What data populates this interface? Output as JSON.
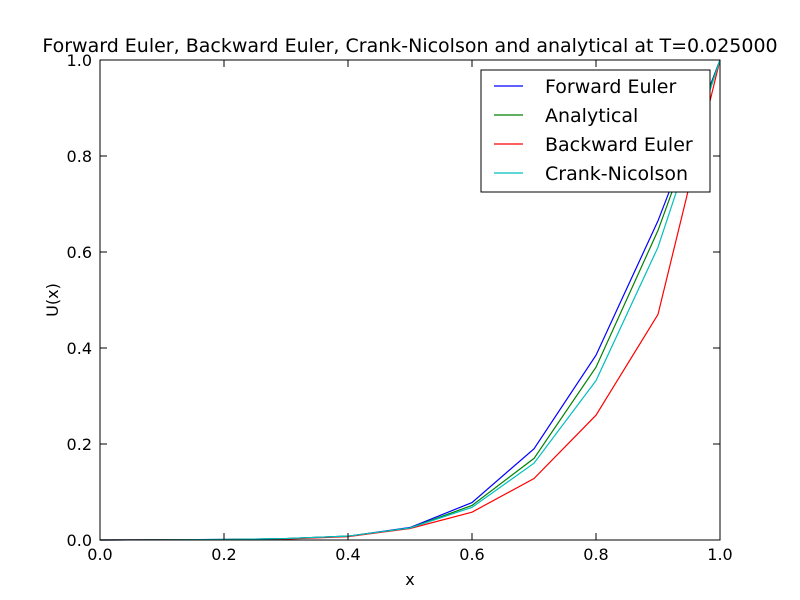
{
  "chart_data": {
    "type": "line",
    "title": "Forward Euler, Backward Euler, Crank-Nicolson and analytical at T=0.025000",
    "xlabel": "x",
    "ylabel": "U(x)",
    "xlim": [
      0.0,
      1.0
    ],
    "ylim": [
      0.0,
      1.0
    ],
    "xticks": [
      "0.0",
      "0.2",
      "0.4",
      "0.6",
      "0.8",
      "1.0"
    ],
    "yticks": [
      "0.0",
      "0.2",
      "0.4",
      "0.6",
      "0.8",
      "1.0"
    ],
    "grid": false,
    "legend_position": "top-right",
    "x": [
      0.0,
      0.1,
      0.2,
      0.3,
      0.4,
      0.5,
      0.6,
      0.7,
      0.8,
      0.9,
      1.0
    ],
    "series": [
      {
        "name": "Forward Euler",
        "color": "#0000ff",
        "values": [
          0.0,
          0.0005,
          0.001,
          0.003,
          0.008,
          0.026,
          0.078,
          0.19,
          0.385,
          0.665,
          1.0
        ]
      },
      {
        "name": "Analytical",
        "color": "#008000",
        "values": [
          0.0,
          0.0004,
          0.001,
          0.003,
          0.008,
          0.025,
          0.072,
          0.17,
          0.36,
          0.645,
          1.0
        ]
      },
      {
        "name": "Backward Euler",
        "color": "#ff0000",
        "values": [
          0.0,
          0.0003,
          0.0008,
          0.002,
          0.007,
          0.024,
          0.058,
          0.128,
          0.26,
          0.47,
          1.0
        ]
      },
      {
        "name": "Crank-Nicolson",
        "color": "#00bfbf",
        "values": [
          0.0,
          0.0004,
          0.001,
          0.003,
          0.008,
          0.025,
          0.068,
          0.16,
          0.332,
          0.61,
          1.0
        ]
      }
    ]
  }
}
